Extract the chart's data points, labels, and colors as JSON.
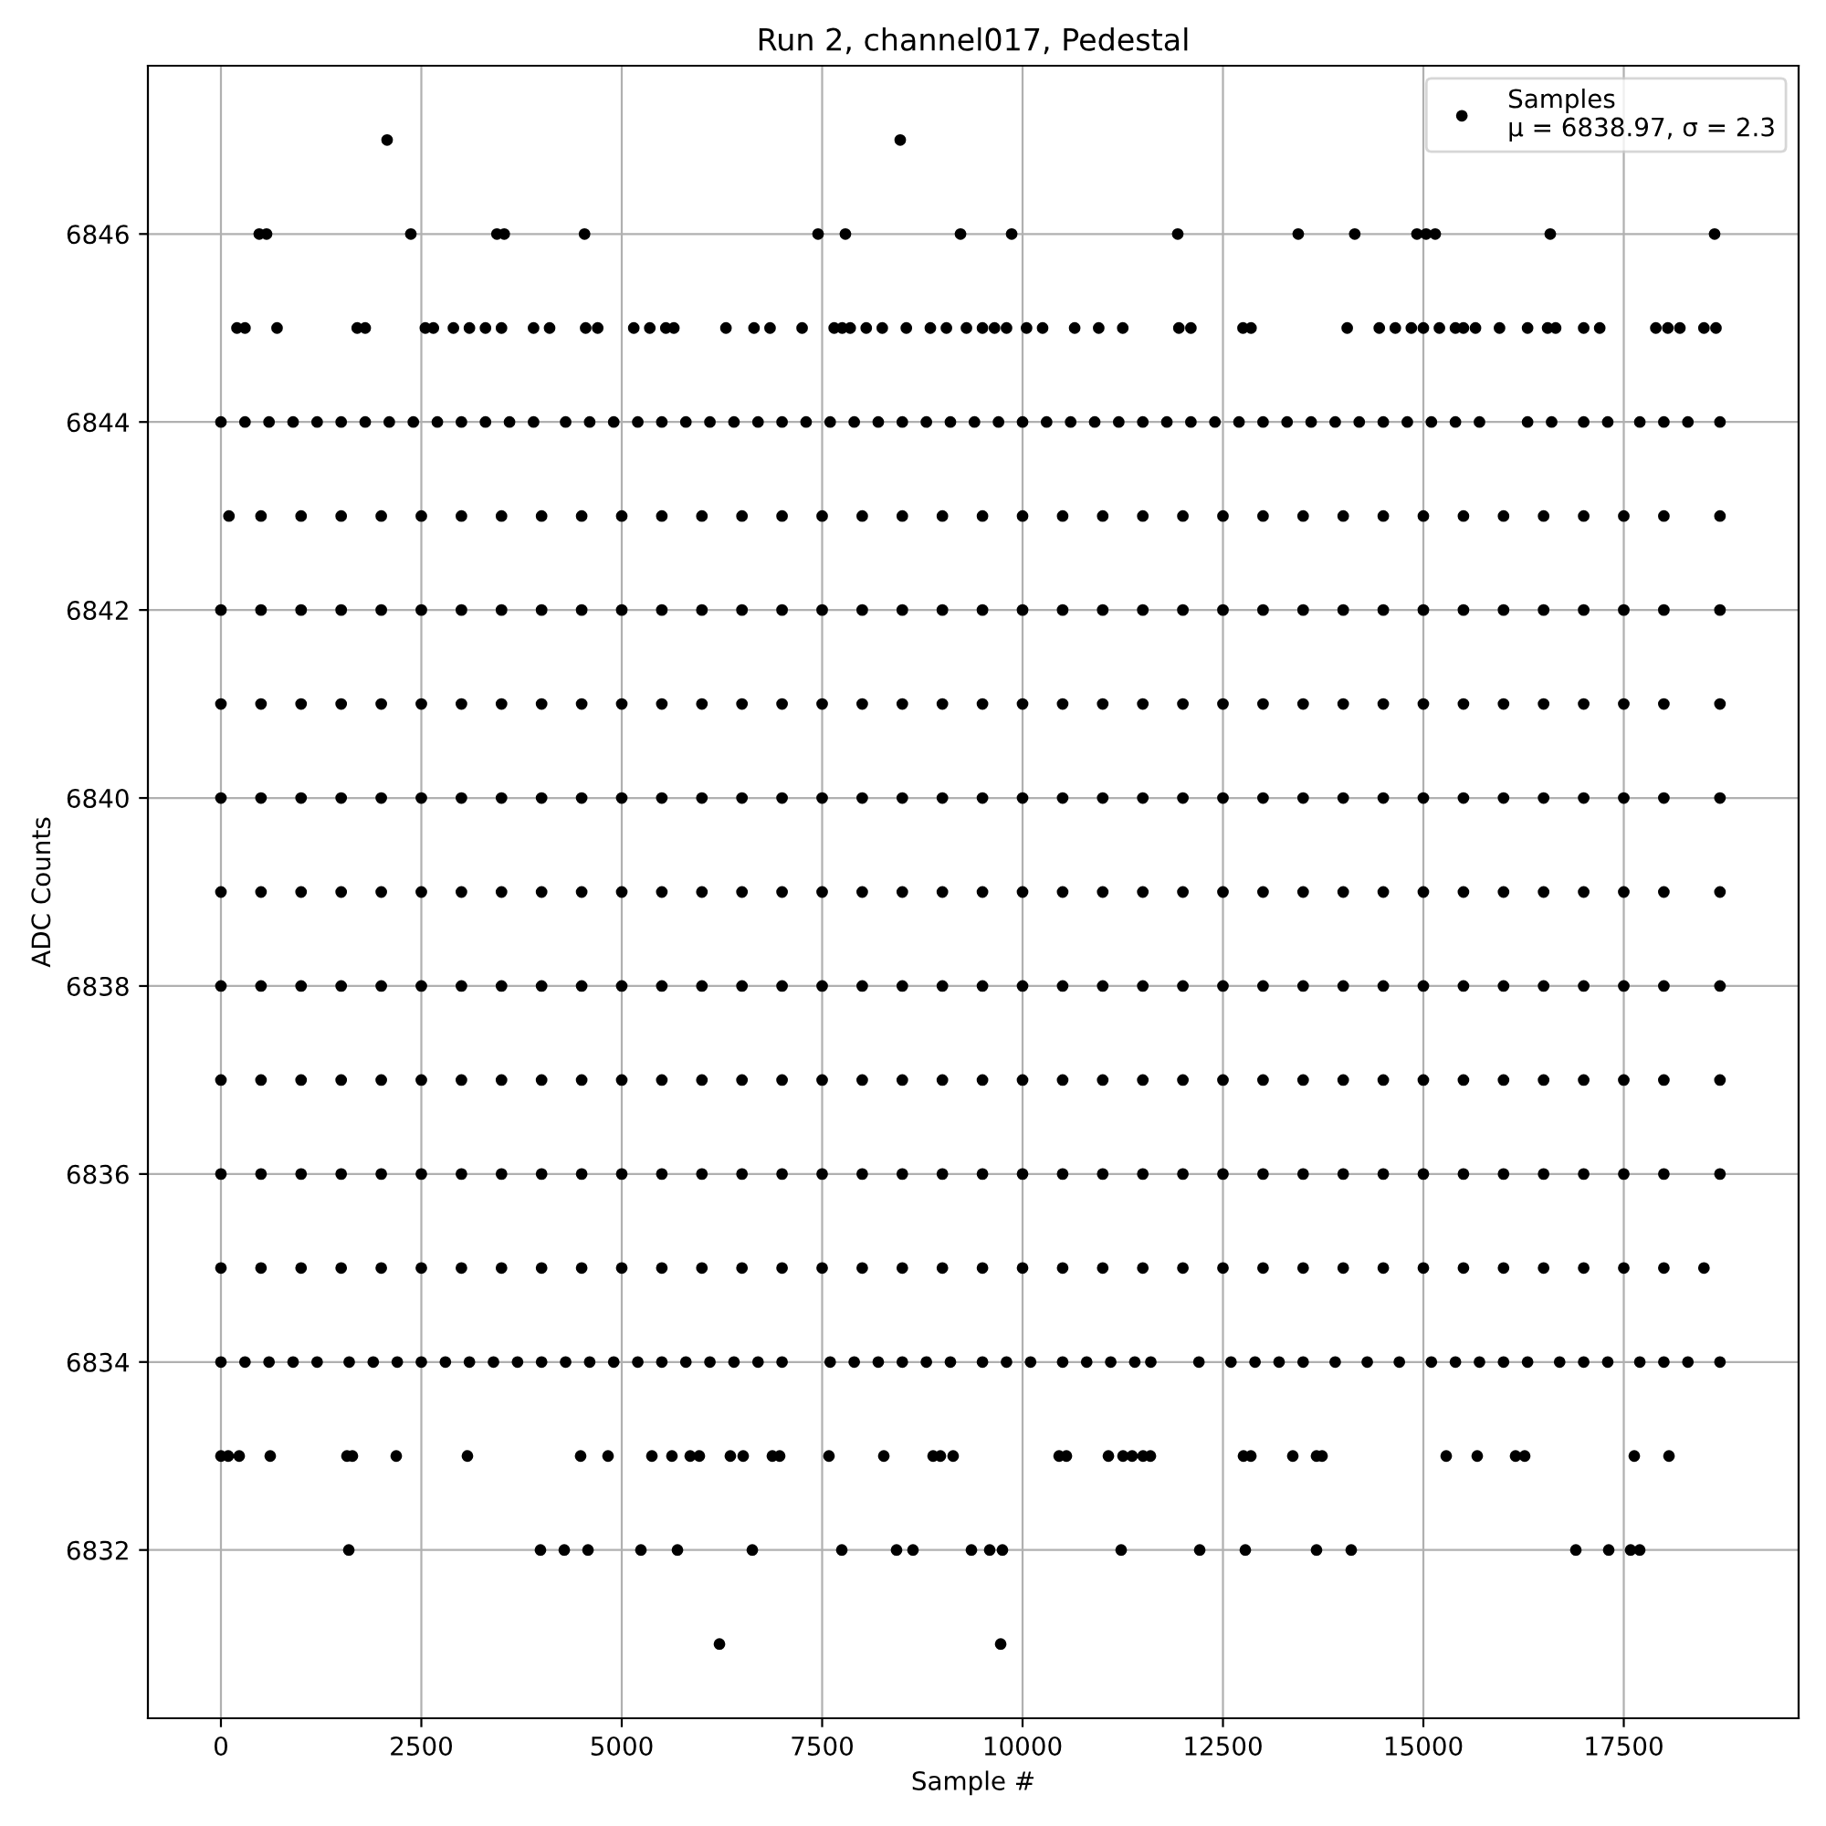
{
  "chart_data": {
    "type": "scatter",
    "title": "Run 2, channel017, Pedestal",
    "xlabel": "Sample #",
    "ylabel": "ADC Counts",
    "xlim": [
      -911,
      19681
    ],
    "ylim": [
      6830.21,
      6847.79
    ],
    "xticks": [
      0,
      2500,
      5000,
      7500,
      10000,
      12500,
      15000,
      17500
    ],
    "yticks": [
      6832,
      6834,
      6836,
      6838,
      6840,
      6842,
      6844,
      6846
    ],
    "grid": true,
    "legend": "top right",
    "marker": "circle",
    "series": [
      {
        "name": "Samples\nμ = 6838.97, σ = 2.3",
        "color": "#000000",
        "x": [
          2073,
          8474,
          6219,
          9727
        ],
        "values": [
          6847,
          6847,
          6831,
          6831
        ]
      },
      {
        "color": "#000000",
        "x": [
          1595,
          3986,
          4283,
          4579,
          5239,
          5695,
          6629,
          7745,
          8428,
          8633,
          9362,
          9590,
          9749,
          11230,
          12210,
          12779,
          13667,
          14100,
          16902,
          17312,
          17585,
          17699
        ],
        "values": [
          6832,
          6832,
          6832,
          6832,
          6832,
          6832,
          6832,
          6832,
          6832,
          6832,
          6832,
          6832,
          6832,
          6832,
          6832,
          6832,
          6832,
          6832,
          6832,
          6832,
          6832,
          6832
        ]
      },
      {
        "color": "#000000",
        "x": [
          0,
          91,
          228,
          615,
          1572,
          1640,
          2187,
          3075,
          4487,
          4829,
          5376,
          5626,
          5854,
          5968,
          6355,
          6515,
          6879,
          6970,
          7585,
          8269,
          8884,
          8975,
          9134,
          10456,
          10547,
          11071,
          11253,
          11367,
          11503,
          11595,
          12756,
          12848,
          13371,
          13667,
          13736,
          15285,
          15672,
          16150,
          16264,
          17631,
          18064
        ],
        "values": [
          6833,
          6833,
          6833,
          6833,
          6833,
          6833,
          6833,
          6833,
          6833,
          6833,
          6833,
          6833,
          6833,
          6833,
          6833,
          6833,
          6833,
          6833,
          6833,
          6833,
          6833,
          6833,
          6833,
          6833,
          6833,
          6833,
          6833,
          6833,
          6833,
          6833,
          6833,
          6833,
          6833,
          6833,
          6833,
          6833,
          6833,
          6833,
          6833,
          6833,
          6833
        ]
      },
      {
        "color": "#000000",
        "x": [
          0,
          300,
          600,
          900,
          1200,
          1600,
          1900,
          2200,
          2500,
          2800,
          3100,
          3400,
          3700,
          4000,
          4300,
          4600,
          4900,
          5200,
          5500,
          5800,
          6100,
          6400,
          6700,
          7000,
          7600,
          7900,
          8200,
          8500,
          8800,
          9100,
          9500,
          9800,
          10100,
          10500,
          10800,
          11100,
          11400,
          11600,
          12200,
          12600,
          12900,
          13200,
          13500,
          13900,
          14300,
          14700,
          15100,
          15400,
          15700,
          16000,
          16300,
          16700,
          17000,
          17300,
          17700,
          18000,
          18300,
          18700
        ],
        "values": [
          6834,
          6834,
          6834,
          6834,
          6834,
          6834,
          6834,
          6834,
          6834,
          6834,
          6834,
          6834,
          6834,
          6834,
          6834,
          6834,
          6834,
          6834,
          6834,
          6834,
          6834,
          6834,
          6834,
          6834,
          6834,
          6834,
          6834,
          6834,
          6834,
          6834,
          6834,
          6834,
          6834,
          6834,
          6834,
          6834,
          6834,
          6834,
          6834,
          6834,
          6834,
          6834,
          6834,
          6834,
          6834,
          6834,
          6834,
          6834,
          6834,
          6834,
          6834,
          6834,
          6834,
          6834,
          6834,
          6834,
          6834,
          6834
        ]
      },
      {
        "color": "#000000",
        "x": [
          0,
          500,
          1000,
          1500,
          2000,
          2500,
          3000,
          3500,
          4000,
          4500,
          5000,
          5500,
          6000,
          6500,
          7000,
          7500,
          8000,
          8500,
          9000,
          9500,
          10000,
          10500,
          11000,
          11500,
          12000,
          12500,
          13000,
          13500,
          14000,
          14500,
          15000,
          15500,
          16000,
          16500,
          17000,
          17500,
          18000,
          18500
        ],
        "values": [
          6835,
          6835,
          6835,
          6835,
          6835,
          6835,
          6835,
          6835,
          6835,
          6835,
          6835,
          6835,
          6835,
          6835,
          6835,
          6835,
          6835,
          6835,
          6835,
          6835,
          6835,
          6835,
          6835,
          6835,
          6835,
          6835,
          6835,
          6835,
          6835,
          6835,
          6835,
          6835,
          6835,
          6835,
          6835,
          6835,
          6835,
          6835
        ]
      },
      {
        "color": "#000000",
        "x": [
          0,
          500,
          1000,
          1500,
          2000,
          2500,
          3000,
          3500,
          4000,
          4500,
          5000,
          5500,
          6000,
          6500,
          7000,
          7500,
          8000,
          8500,
          9000,
          9500,
          10000,
          10500,
          11000,
          11500,
          12000,
          12500,
          13000,
          13500,
          14000,
          14500,
          15000,
          15500,
          16000,
          16500,
          17000,
          17500,
          18000,
          18700
        ],
        "values": [
          6836,
          6836,
          6836,
          6836,
          6836,
          6836,
          6836,
          6836,
          6836,
          6836,
          6836,
          6836,
          6836,
          6836,
          6836,
          6836,
          6836,
          6836,
          6836,
          6836,
          6836,
          6836,
          6836,
          6836,
          6836,
          6836,
          6836,
          6836,
          6836,
          6836,
          6836,
          6836,
          6836,
          6836,
          6836,
          6836,
          6836,
          6836
        ]
      },
      {
        "color": "#000000",
        "x": [
          0,
          500,
          1000,
          1500,
          2000,
          2500,
          3000,
          3500,
          4000,
          4500,
          5000,
          5500,
          6000,
          6500,
          7000,
          7500,
          8000,
          8500,
          9000,
          9500,
          10000,
          10500,
          11000,
          11500,
          12000,
          12500,
          13000,
          13500,
          14000,
          14500,
          15000,
          15500,
          16000,
          16500,
          17000,
          17500,
          18000,
          18700
        ],
        "values": [
          6837,
          6837,
          6837,
          6837,
          6837,
          6837,
          6837,
          6837,
          6837,
          6837,
          6837,
          6837,
          6837,
          6837,
          6837,
          6837,
          6837,
          6837,
          6837,
          6837,
          6837,
          6837,
          6837,
          6837,
          6837,
          6837,
          6837,
          6837,
          6837,
          6837,
          6837,
          6837,
          6837,
          6837,
          6837,
          6837,
          6837,
          6837
        ]
      },
      {
        "color": "#000000",
        "x": [
          0,
          500,
          1000,
          1500,
          2000,
          2500,
          3000,
          3500,
          4000,
          4500,
          5000,
          5500,
          6000,
          6500,
          7000,
          7500,
          8000,
          8500,
          9000,
          9500,
          10000,
          10500,
          11000,
          11500,
          12000,
          12500,
          13000,
          13500,
          14000,
          14500,
          15000,
          15500,
          16000,
          16500,
          17000,
          17500,
          18000,
          18700
        ],
        "values": [
          6838,
          6838,
          6838,
          6838,
          6838,
          6838,
          6838,
          6838,
          6838,
          6838,
          6838,
          6838,
          6838,
          6838,
          6838,
          6838,
          6838,
          6838,
          6838,
          6838,
          6838,
          6838,
          6838,
          6838,
          6838,
          6838,
          6838,
          6838,
          6838,
          6838,
          6838,
          6838,
          6838,
          6838,
          6838,
          6838,
          6838,
          6838
        ]
      },
      {
        "color": "#000000",
        "x": [
          0,
          500,
          1000,
          1500,
          2000,
          2500,
          3000,
          3500,
          4000,
          4500,
          5000,
          5500,
          6000,
          6500,
          7000,
          7500,
          8000,
          8500,
          9000,
          9500,
          10000,
          10500,
          11000,
          11500,
          12000,
          12500,
          13000,
          13500,
          14000,
          14500,
          15000,
          15500,
          16000,
          16500,
          17000,
          17500,
          18000,
          18700
        ],
        "values": [
          6839,
          6839,
          6839,
          6839,
          6839,
          6839,
          6839,
          6839,
          6839,
          6839,
          6839,
          6839,
          6839,
          6839,
          6839,
          6839,
          6839,
          6839,
          6839,
          6839,
          6839,
          6839,
          6839,
          6839,
          6839,
          6839,
          6839,
          6839,
          6839,
          6839,
          6839,
          6839,
          6839,
          6839,
          6839,
          6839,
          6839,
          6839
        ]
      },
      {
        "color": "#000000",
        "x": [
          0,
          500,
          1000,
          1500,
          2000,
          2500,
          3000,
          3500,
          4000,
          4500,
          5000,
          5500,
          6000,
          6500,
          7000,
          7500,
          8000,
          8500,
          9000,
          9500,
          10000,
          10500,
          11000,
          11500,
          12000,
          12500,
          13000,
          13500,
          14000,
          14500,
          15000,
          15500,
          16000,
          16500,
          17000,
          17500,
          18000,
          18700
        ],
        "values": [
          6840,
          6840,
          6840,
          6840,
          6840,
          6840,
          6840,
          6840,
          6840,
          6840,
          6840,
          6840,
          6840,
          6840,
          6840,
          6840,
          6840,
          6840,
          6840,
          6840,
          6840,
          6840,
          6840,
          6840,
          6840,
          6840,
          6840,
          6840,
          6840,
          6840,
          6840,
          6840,
          6840,
          6840,
          6840,
          6840,
          6840,
          6840
        ]
      },
      {
        "color": "#000000",
        "x": [
          0,
          500,
          1000,
          1500,
          2000,
          2500,
          3000,
          3500,
          4000,
          4500,
          5000,
          5500,
          6000,
          6500,
          7000,
          7500,
          8000,
          8500,
          9000,
          9500,
          10000,
          10500,
          11000,
          11500,
          12000,
          12500,
          13000,
          13500,
          14000,
          14500,
          15000,
          15500,
          16000,
          16500,
          17000,
          17500,
          18000,
          18700
        ],
        "values": [
          6841,
          6841,
          6841,
          6841,
          6841,
          6841,
          6841,
          6841,
          6841,
          6841,
          6841,
          6841,
          6841,
          6841,
          6841,
          6841,
          6841,
          6841,
          6841,
          6841,
          6841,
          6841,
          6841,
          6841,
          6841,
          6841,
          6841,
          6841,
          6841,
          6841,
          6841,
          6841,
          6841,
          6841,
          6841,
          6841,
          6841,
          6841
        ]
      },
      {
        "color": "#000000",
        "x": [
          0,
          500,
          1000,
          1500,
          2000,
          2500,
          3000,
          3500,
          4000,
          4500,
          5000,
          5500,
          6000,
          6500,
          7000,
          7500,
          8000,
          8500,
          9000,
          9500,
          10000,
          10500,
          11000,
          11500,
          12000,
          12500,
          13000,
          13500,
          14000,
          14500,
          15000,
          15500,
          16000,
          16500,
          17000,
          17500,
          18000,
          18700
        ],
        "values": [
          6842,
          6842,
          6842,
          6842,
          6842,
          6842,
          6842,
          6842,
          6842,
          6842,
          6842,
          6842,
          6842,
          6842,
          6842,
          6842,
          6842,
          6842,
          6842,
          6842,
          6842,
          6842,
          6842,
          6842,
          6842,
          6842,
          6842,
          6842,
          6842,
          6842,
          6842,
          6842,
          6842,
          6842,
          6842,
          6842,
          6842,
          6842
        ]
      },
      {
        "color": "#000000",
        "x": [
          100,
          500,
          1000,
          1500,
          2000,
          2500,
          3000,
          3500,
          4000,
          4500,
          5000,
          5500,
          6000,
          6500,
          7000,
          7500,
          8000,
          8500,
          9000,
          9500,
          10000,
          10500,
          11000,
          11500,
          12000,
          12500,
          13000,
          13500,
          14000,
          14500,
          15000,
          15500,
          16000,
          16500,
          17000,
          17500,
          18000,
          18700
        ],
        "values": [
          6843,
          6843,
          6843,
          6843,
          6843,
          6843,
          6843,
          6843,
          6843,
          6843,
          6843,
          6843,
          6843,
          6843,
          6843,
          6843,
          6843,
          6843,
          6843,
          6843,
          6843,
          6843,
          6843,
          6843,
          6843,
          6843,
          6843,
          6843,
          6843,
          6843,
          6843,
          6843,
          6843,
          6843,
          6843,
          6843,
          6843,
          6843
        ]
      },
      {
        "color": "#000000",
        "x": [
          0,
          300,
          600,
          900,
          1200,
          1500,
          1800,
          2100,
          2400,
          2700,
          3000,
          3300,
          3600,
          3900,
          4300,
          4600,
          4900,
          5200,
          5500,
          5800,
          6100,
          6400,
          6700,
          7000,
          7300,
          7600,
          7900,
          8200,
          8500,
          8800,
          9100,
          9400,
          9700,
          10000,
          10300,
          10600,
          10900,
          11200,
          11500,
          11800,
          12100,
          12400,
          12700,
          13000,
          13300,
          13600,
          13900,
          14200,
          14500,
          14800,
          15100,
          15400,
          15700,
          16300,
          16600,
          17000,
          17300,
          17700,
          18000,
          18300,
          18700
        ],
        "values": [
          6844,
          6844,
          6844,
          6844,
          6844,
          6844,
          6844,
          6844,
          6844,
          6844,
          6844,
          6844,
          6844,
          6844,
          6844,
          6844,
          6844,
          6844,
          6844,
          6844,
          6844,
          6844,
          6844,
          6844,
          6844,
          6844,
          6844,
          6844,
          6844,
          6844,
          6844,
          6844,
          6844,
          6844,
          6844,
          6844,
          6844,
          6844,
          6844,
          6844,
          6844,
          6844,
          6844,
          6844,
          6844,
          6844,
          6844,
          6844,
          6844,
          6844,
          6844,
          6844,
          6844,
          6844,
          6844,
          6844,
          6844,
          6844,
          6844,
          6844,
          6844
        ]
      },
      {
        "color": "#000000",
        "x": [
          200,
          300,
          700,
          1700,
          1800,
          2550,
          2650,
          2900,
          3100,
          3300,
          3500,
          3900,
          4100,
          4550,
          4700,
          5150,
          5350,
          5550,
          5650,
          6300,
          6650,
          6850,
          7250,
          7650,
          7750,
          7850,
          8050,
          8250,
          8550,
          8850,
          9050,
          9300,
          9500,
          9650,
          9800,
          10050,
          10250,
          10650,
          10950,
          11250,
          11950,
          12100,
          12750,
          12850,
          14050,
          14450,
          14650,
          14850,
          15000,
          15200,
          15400,
          15500,
          15650,
          15950,
          16300,
          16550,
          16650,
          17000,
          17200,
          17900,
          18050,
          18200,
          18500,
          18650
        ],
        "values": [
          6845,
          6845,
          6845,
          6845,
          6845,
          6845,
          6845,
          6845,
          6845,
          6845,
          6845,
          6845,
          6845,
          6845,
          6845,
          6845,
          6845,
          6845,
          6845,
          6845,
          6845,
          6845,
          6845,
          6845,
          6845,
          6845,
          6845,
          6845,
          6845,
          6845,
          6845,
          6845,
          6845,
          6845,
          6845,
          6845,
          6845,
          6845,
          6845,
          6845,
          6845,
          6845,
          6845,
          6845,
          6845,
          6845,
          6845,
          6845,
          6845,
          6845,
          6845,
          6845,
          6845,
          6845,
          6845,
          6845,
          6845,
          6845,
          6845,
          6845,
          6845,
          6845,
          6845,
          6845
        ]
      },
      {
        "color": "#000000",
        "x": [
          478,
          569,
          2369,
          3443,
          3534,
          4536,
          7449,
          7790,
          9226,
          9864,
          11936,
          13439,
          14144,
          14920,
          15034,
          15148,
          16583,
          18633
        ],
        "values": [
          6846,
          6846,
          6846,
          6846,
          6846,
          6846,
          6846,
          6846,
          6846,
          6846,
          6846,
          6846,
          6846,
          6846,
          6846,
          6846,
          6846,
          6846
        ]
      }
    ]
  }
}
